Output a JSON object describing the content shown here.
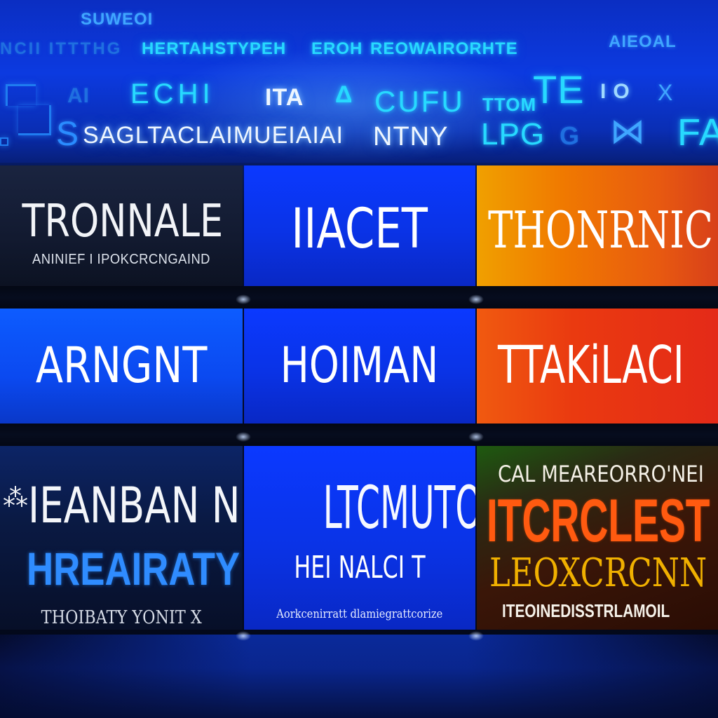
{
  "header": {
    "line1": "SUWEOI",
    "line2a": "NCII ITTTHG",
    "line2b": "HERTAHSTYPEH",
    "line2c": "EROH",
    "line2d": "REOWAIRORHTE",
    "line2e": "AIEOAL",
    "line3a": "AI",
    "line3b": "ECHI",
    "line3c": "ITA",
    "line3d": "CUFU",
    "line3e": "TTOM",
    "line3f": "TE",
    "line3g": "IO",
    "line3h": "X",
    "line4a": "SAGLTACLAIMUEIAIAI",
    "line4b": "NTNY",
    "line4c": "LPG",
    "line4d": "FA"
  },
  "tiles": {
    "r1c1": {
      "main": "TRONNALE",
      "sub": "ANINIEF I IPOKCRCNGAIND"
    },
    "r1c2": {
      "main": "IIACET"
    },
    "r1c3": {
      "main": "THONRNIC"
    },
    "r2c1": {
      "main": "ARNGNT"
    },
    "r2c2": {
      "main": "HOIMAN"
    },
    "r2c3": {
      "main": "TTAKiLACI"
    },
    "r3c1": {
      "icon_text": "⁂",
      "main": "IEANBAN N",
      "highlight": "HREAIRATY",
      "foot": "THOIBATY YONIT X"
    },
    "r3c2": {
      "main": "LTCMUTORIU",
      "mid": "HEI NALCI T",
      "foot": "Aorkcenirratt dlamiegrattcorize"
    },
    "r3c3": {
      "top": "CAL MEAREORRO'NEI",
      "main": "ITCRCLEST",
      "mid": "LEOXCRCNN",
      "foot": "ITEOINEDISSTRLAMOIL"
    }
  },
  "colors": {
    "header_blue": "#0c3ae0",
    "tile_navy": "#121a30",
    "tile_blue": "#0a33e6",
    "tile_orange": "#f07a00",
    "tile_red": "#ea3a10",
    "highlight_blue": "#2f8cff",
    "accent_orange": "#ff5a10",
    "accent_yellow": "#f0b000"
  }
}
